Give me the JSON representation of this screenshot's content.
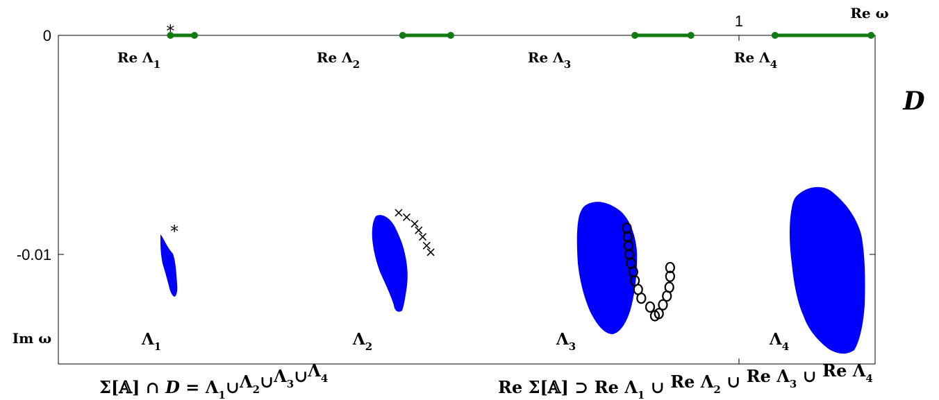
{
  "chart_data": {
    "type": "scatter",
    "description_free": true,
    "axes": {
      "x_label": "Re ω",
      "y_label": "Im ω",
      "x_ticks": [
        {
          "value": 1,
          "label": "1"
        }
      ],
      "y_ticks": [
        {
          "value": 0,
          "label": "0"
        },
        {
          "value": -0.01,
          "label": "-0.01"
        }
      ],
      "xlim": [
        0.15,
        1.17
      ],
      "ylim": [
        -0.015,
        0
      ]
    },
    "domain_label": "D",
    "segments": [
      {
        "name": "Re Λ",
        "sub": "1",
        "x_range": [
          0.29,
          0.32
        ]
      },
      {
        "name": "Re Λ",
        "sub": "2",
        "x_range": [
          0.58,
          0.64
        ]
      },
      {
        "name": "Re Λ",
        "sub": "3",
        "x_range": [
          0.87,
          0.94
        ]
      },
      {
        "name": "Re Λ",
        "sub": "4",
        "x_range": [
          1.045,
          1.165
        ]
      }
    ],
    "regions": [
      {
        "name": "Λ",
        "sub": "1",
        "x_center": 0.305,
        "y_top": -0.0091,
        "y_bottom": -0.0119
      },
      {
        "name": "Λ",
        "sub": "2",
        "x_center": 0.59,
        "y_top": -0.0081,
        "y_bottom": -0.0126
      },
      {
        "name": "Λ",
        "sub": "3",
        "x_center": 0.895,
        "y_top": -0.0076,
        "y_bottom": -0.0137
      },
      {
        "name": "Λ",
        "sub": "4",
        "x_center": 1.12,
        "y_top": -0.0068,
        "y_bottom": -0.0145
      }
    ],
    "markers": {
      "star_top": {
        "x": 0.29,
        "y": 0
      },
      "star_region": {
        "x": 0.295,
        "y": -0.0089
      },
      "cross_x": [
        0.575,
        0.585,
        0.595,
        0.6,
        0.605,
        0.61,
        0.615
      ],
      "cross_y": [
        -0.0081,
        -0.0083,
        -0.0086,
        -0.0089,
        -0.0092,
        -0.0096,
        -0.0099
      ],
      "circle_left_x": [
        0.86,
        0.861,
        0.862,
        0.863,
        0.865,
        0.868,
        0.87,
        0.874,
        0.878
      ],
      "circle_left_y": [
        -0.0088,
        -0.0092,
        -0.0096,
        -0.01,
        -0.0104,
        -0.0108,
        -0.0112,
        -0.0116,
        -0.012
      ],
      "circle_right_x": [
        0.889,
        0.895,
        0.9,
        0.905,
        0.91,
        0.913,
        0.914,
        0.914
      ],
      "circle_right_y": [
        -0.0124,
        -0.0128,
        -0.0127,
        -0.0123,
        -0.0119,
        -0.0115,
        -0.011,
        -0.0106
      ]
    },
    "colors": {
      "region": "#0000ff",
      "segment": "#117a11",
      "axis": "#000000"
    }
  },
  "caption": {
    "left": {
      "sigma": "Σ[",
      "bracket_A": "𝔸",
      "close": "] ∩ ",
      "D": "D",
      "eq": "  =  ",
      "L": "Λ",
      "cup": "∪",
      "subs": [
        "1",
        "2",
        "3",
        "4"
      ]
    },
    "right": {
      "re": "Re",
      "sigma": "Σ[",
      "bracket_A": "𝔸",
      "close": "]",
      "supset": "⊃",
      "L": "Λ",
      "cup": "∪",
      "subs": [
        "1",
        "2",
        "3",
        "4"
      ]
    }
  }
}
